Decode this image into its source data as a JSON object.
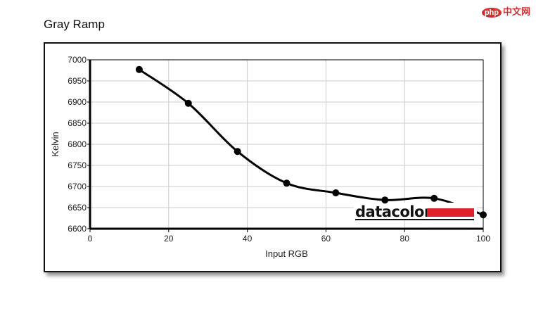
{
  "watermark": {
    "logo_text": "php 中文网"
  },
  "chart_data": {
    "type": "line",
    "title": "Gray Ramp",
    "xlabel": "Input RGB",
    "ylabel": "Kelvin",
    "xlim": [
      0,
      100
    ],
    "ylim": [
      6600,
      7000
    ],
    "xticks": [
      0,
      20,
      40,
      60,
      80,
      100
    ],
    "yticks": [
      6600,
      6650,
      6700,
      6750,
      6800,
      6850,
      6900,
      6950,
      7000
    ],
    "grid": true,
    "line_color": "#000000",
    "x": [
      12.5,
      25,
      37.5,
      50,
      62.5,
      75,
      87.5,
      100
    ],
    "y": [
      6977,
      6897,
      6783,
      6708,
      6685,
      6668,
      6672,
      6633
    ],
    "logo": {
      "text": "datacolor",
      "accent_color": "#e0202a"
    }
  }
}
